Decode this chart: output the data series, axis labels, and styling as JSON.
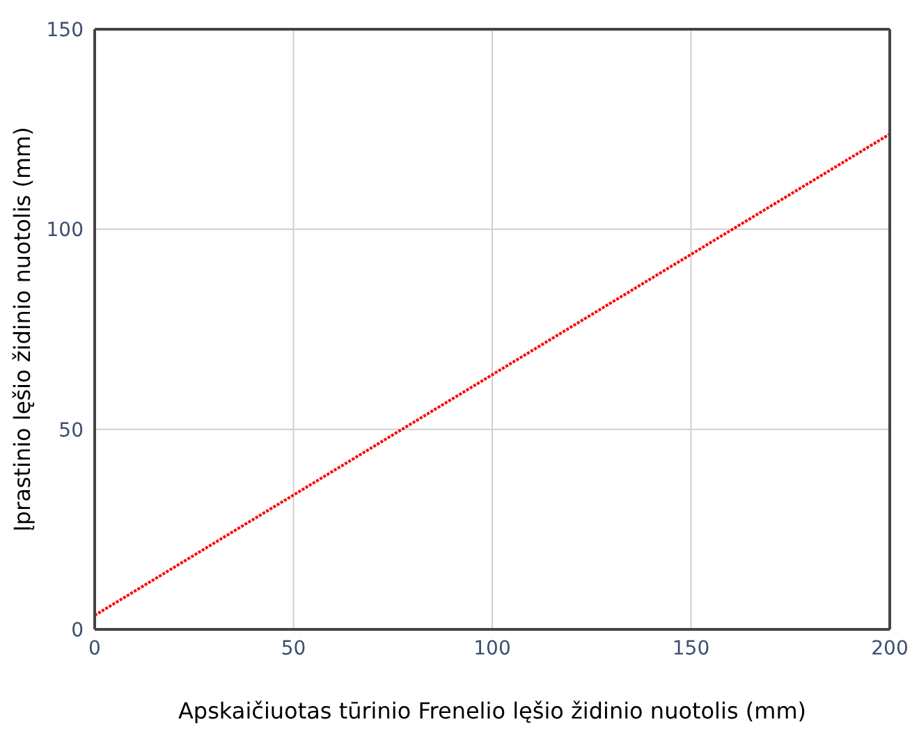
{
  "chart_data": {
    "type": "line",
    "xlabel": "Apskaičiuotas tūrinio Frenelio lęšio židinio nuotolis (mm)",
    "ylabel": "Įprastinio lęšio židinio nuotolis (mm)",
    "x": [
      0,
      200
    ],
    "series": [
      {
        "color": "#ff0000",
        "values": [
          3.5,
          123.8
        ]
      }
    ],
    "xlim": [
      0,
      200
    ],
    "xticks": [
      0,
      50,
      100,
      150,
      200
    ],
    "ylim": [
      0,
      150
    ],
    "yticks": [
      0,
      50,
      100,
      150
    ],
    "grid": true,
    "line_style": "dotted",
    "marker": "none"
  }
}
